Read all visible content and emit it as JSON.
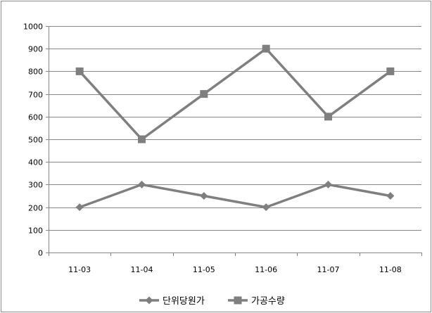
{
  "chart_data": {
    "type": "line",
    "categories": [
      "11-03",
      "11-04",
      "11-05",
      "11-06",
      "11-07",
      "11-08"
    ],
    "ylim": [
      0,
      1000
    ],
    "y_ticks": [
      0,
      100,
      200,
      300,
      400,
      500,
      600,
      700,
      800,
      900,
      1000
    ],
    "grid": true,
    "legend_position": "bottom",
    "series": [
      {
        "name": "단위당원가",
        "marker": "diamond",
        "values": [
          200,
          300,
          250,
          200,
          300,
          250
        ]
      },
      {
        "name": "가공수량",
        "marker": "square",
        "values": [
          800,
          500,
          700,
          900,
          600,
          800
        ]
      }
    ]
  },
  "colors": {
    "line": "#7f7f7f",
    "marker": "#7f7f7f",
    "grid": "#868686",
    "axis": "#868686"
  }
}
